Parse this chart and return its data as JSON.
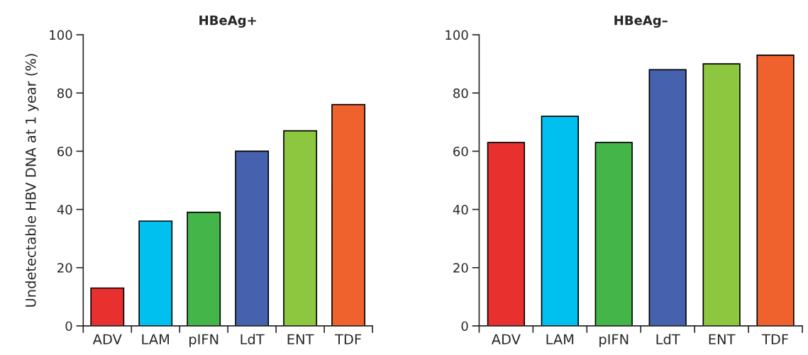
{
  "chart_data": [
    {
      "type": "bar",
      "title": "HBeAg+",
      "ylabel": "Undetectable HBV DNA at 1 year (%)",
      "categories": [
        "ADV",
        "LAM",
        "pIFN",
        "LdT",
        "ENT",
        "TDF"
      ],
      "values": [
        13,
        36,
        39,
        60,
        67,
        76
      ],
      "colors": [
        "#e8312f",
        "#00c0ef",
        "#44b649",
        "#4661ad",
        "#8dc63f",
        "#f0622d"
      ],
      "ylim": [
        0,
        100
      ],
      "yticks": [
        0,
        20,
        40,
        60,
        80,
        100
      ],
      "grid": false,
      "legend": false
    },
    {
      "type": "bar",
      "title": "HBeAg–",
      "categories": [
        "ADV",
        "LAM",
        "pIFN",
        "LdT",
        "ENT",
        "TDF"
      ],
      "values": [
        63,
        72,
        63,
        88,
        90,
        93
      ],
      "colors": [
        "#e8312f",
        "#00c0ef",
        "#44b649",
        "#4661ad",
        "#8dc63f",
        "#f0622d"
      ],
      "ylim": [
        0,
        100
      ],
      "yticks": [
        0,
        20,
        40,
        60,
        80,
        100
      ],
      "grid": false,
      "legend": false
    }
  ]
}
